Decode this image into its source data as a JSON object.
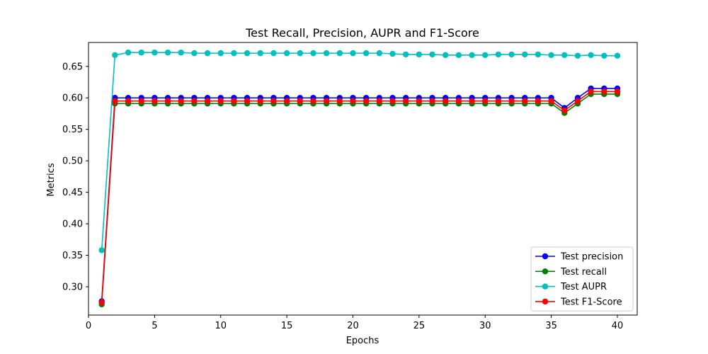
{
  "chart_data": {
    "type": "line",
    "title": "Test Recall, Precision, AUPR and F1-Score",
    "xlabel": "Epochs",
    "ylabel": "Metrics",
    "xlim": [
      0,
      41.5
    ],
    "ylim": [
      0.255,
      0.688
    ],
    "xticks": [
      0,
      5,
      10,
      15,
      20,
      25,
      30,
      35,
      40
    ],
    "yticks": [
      0.3,
      0.35,
      0.4,
      0.45,
      0.5,
      0.55,
      0.6,
      0.65
    ],
    "grid": false,
    "legend_position": "bottom-right",
    "x": [
      1,
      2,
      3,
      4,
      5,
      6,
      7,
      8,
      9,
      10,
      11,
      12,
      13,
      14,
      15,
      16,
      17,
      18,
      19,
      20,
      21,
      22,
      23,
      24,
      25,
      26,
      27,
      28,
      29,
      30,
      31,
      32,
      33,
      34,
      35,
      36,
      37,
      38,
      39,
      40
    ],
    "series": [
      {
        "name": "Test precision",
        "color": "#0000ff",
        "values": [
          0.277,
          0.6,
          0.6,
          0.6,
          0.6,
          0.6,
          0.6,
          0.6,
          0.6,
          0.6,
          0.6,
          0.6,
          0.6,
          0.6,
          0.6,
          0.6,
          0.6,
          0.6,
          0.6,
          0.6,
          0.6,
          0.6,
          0.6,
          0.6,
          0.6,
          0.6,
          0.6,
          0.6,
          0.6,
          0.6,
          0.6,
          0.6,
          0.6,
          0.6,
          0.6,
          0.584,
          0.6,
          0.615,
          0.615,
          0.615
        ]
      },
      {
        "name": "Test recall",
        "color": "#008000",
        "values": [
          0.272,
          0.591,
          0.591,
          0.591,
          0.591,
          0.591,
          0.591,
          0.591,
          0.591,
          0.591,
          0.591,
          0.591,
          0.591,
          0.591,
          0.591,
          0.591,
          0.591,
          0.591,
          0.591,
          0.591,
          0.591,
          0.591,
          0.591,
          0.591,
          0.591,
          0.591,
          0.591,
          0.591,
          0.591,
          0.591,
          0.591,
          0.591,
          0.591,
          0.591,
          0.591,
          0.576,
          0.591,
          0.606,
          0.606,
          0.606
        ]
      },
      {
        "name": "Test AUPR",
        "color": "#00bfbf",
        "values": [
          0.358,
          0.668,
          0.672,
          0.672,
          0.672,
          0.672,
          0.672,
          0.671,
          0.671,
          0.671,
          0.671,
          0.671,
          0.671,
          0.671,
          0.671,
          0.671,
          0.671,
          0.671,
          0.671,
          0.671,
          0.671,
          0.671,
          0.67,
          0.669,
          0.669,
          0.669,
          0.668,
          0.668,
          0.668,
          0.668,
          0.669,
          0.669,
          0.669,
          0.669,
          0.668,
          0.668,
          0.667,
          0.668,
          0.667,
          0.667
        ]
      },
      {
        "name": "Test F1-Score",
        "color": "#ff0000",
        "values": [
          0.275,
          0.595,
          0.595,
          0.595,
          0.595,
          0.595,
          0.595,
          0.595,
          0.595,
          0.595,
          0.595,
          0.595,
          0.595,
          0.595,
          0.595,
          0.595,
          0.595,
          0.595,
          0.595,
          0.595,
          0.595,
          0.595,
          0.595,
          0.595,
          0.595,
          0.595,
          0.595,
          0.595,
          0.595,
          0.595,
          0.595,
          0.595,
          0.595,
          0.595,
          0.595,
          0.58,
          0.595,
          0.61,
          0.61,
          0.61
        ]
      }
    ]
  }
}
